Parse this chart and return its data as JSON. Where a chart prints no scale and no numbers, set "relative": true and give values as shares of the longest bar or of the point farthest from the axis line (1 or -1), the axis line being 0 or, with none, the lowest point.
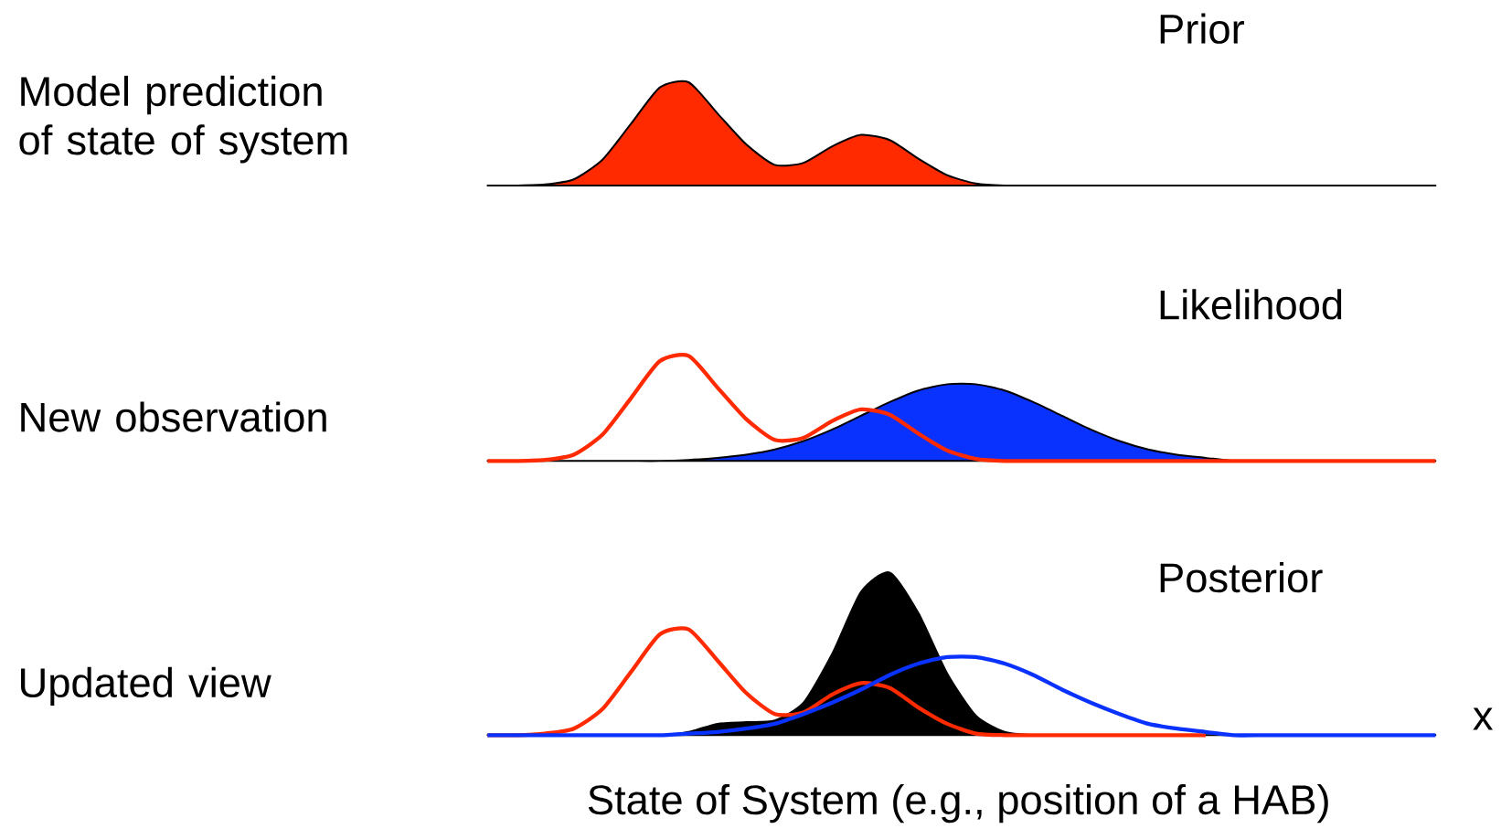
{
  "chart_data": [
    {
      "type": "area",
      "relative": true,
      "title": "Prior",
      "ylabel": "Model prediction of state of system",
      "categories": [
        null,
        null,
        null,
        null,
        null,
        null,
        null,
        null,
        null,
        null,
        null,
        null,
        null,
        null,
        null,
        null,
        null,
        null,
        null,
        null,
        null,
        null,
        null,
        null,
        null,
        null,
        null,
        null,
        null,
        null,
        null,
        null,
        null,
        null
      ],
      "series": [
        {
          "color": "#ff2a00",
          "values": [
            0,
            0,
            0.01,
            0.06,
            0.25,
            0.6,
            0.95,
            1.0,
            0.7,
            0.4,
            0.2,
            0.22,
            0.38,
            0.49,
            0.44,
            0.26,
            0.1,
            0.02,
            0,
            0,
            0,
            0,
            0,
            0,
            0,
            0,
            0,
            0,
            0,
            0,
            0,
            0,
            0,
            0
          ]
        }
      ]
    },
    {
      "type": "area",
      "relative": true,
      "title": "Likelihood",
      "ylabel": "New observation",
      "categories": [
        null,
        null,
        null,
        null,
        null,
        null,
        null,
        null,
        null,
        null,
        null,
        null,
        null,
        null,
        null,
        null,
        null,
        null,
        null,
        null,
        null,
        null,
        null,
        null,
        null,
        null,
        null,
        null,
        null,
        null,
        null,
        null,
        null,
        null
      ],
      "series": [
        {
          "color": "#0a32ff",
          "values": [
            0,
            0,
            0,
            0,
            0,
            0,
            0,
            0.01,
            0.03,
            0.06,
            0.11,
            0.19,
            0.3,
            0.43,
            0.56,
            0.67,
            0.73,
            0.73,
            0.67,
            0.56,
            0.43,
            0.3,
            0.19,
            0.11,
            0.06,
            0.03,
            0,
            0,
            0,
            0,
            0,
            0,
            0,
            0
          ]
        },
        {
          "type": "line",
          "color": "#ff2a00",
          "values": [
            0,
            0,
            0.01,
            0.06,
            0.25,
            0.6,
            0.95,
            1.0,
            0.7,
            0.4,
            0.2,
            0.22,
            0.38,
            0.49,
            0.44,
            0.26,
            0.1,
            0.02,
            0,
            0,
            0,
            0,
            0,
            0,
            0,
            0,
            0,
            0,
            0,
            0,
            0,
            0,
            0,
            0
          ]
        }
      ]
    },
    {
      "type": "area",
      "relative": true,
      "title": "Posterior",
      "ylabel": "Updated view",
      "xlabel": "State of System (e.g., position of a HAB)",
      "annotations": [
        "x"
      ],
      "categories": [
        null,
        null,
        null,
        null,
        null,
        null,
        null,
        null,
        null,
        null,
        null,
        null,
        null,
        null,
        null,
        null,
        null,
        null,
        null,
        null,
        null,
        null,
        null,
        null,
        null,
        null,
        null,
        null,
        null,
        null,
        null,
        null,
        null,
        null
      ],
      "series": [
        {
          "color": "#000000",
          "values": [
            0,
            0,
            0,
            0,
            0,
            0,
            0,
            0.02,
            0.07,
            0.08,
            0.09,
            0.2,
            0.5,
            0.88,
            1.0,
            0.75,
            0.38,
            0.12,
            0.02,
            0,
            0,
            0,
            0,
            0,
            0,
            0,
            0,
            0,
            0,
            0,
            0,
            0,
            0,
            0
          ]
        },
        {
          "type": "line",
          "color": "#ff2a00",
          "values": [
            0,
            0,
            0.01,
            0.04,
            0.16,
            0.39,
            0.62,
            0.65,
            0.46,
            0.26,
            0.13,
            0.14,
            0.25,
            0.32,
            0.29,
            0.17,
            0.07,
            0.01,
            0,
            0,
            0,
            0,
            0,
            0,
            0,
            0,
            null,
            null,
            null,
            null,
            null,
            null,
            null,
            null
          ]
        },
        {
          "type": "line",
          "color": "#0a32ff",
          "values": [
            0,
            0,
            0,
            0,
            0,
            0,
            0,
            0.01,
            0.02,
            0.04,
            0.07,
            0.13,
            0.2,
            0.28,
            0.37,
            0.44,
            0.48,
            0.48,
            0.44,
            0.37,
            0.28,
            0.2,
            0.13,
            0.07,
            0.04,
            0.02,
            0,
            0,
            0,
            0,
            0,
            0,
            0,
            0
          ]
        }
      ]
    }
  ]
}
